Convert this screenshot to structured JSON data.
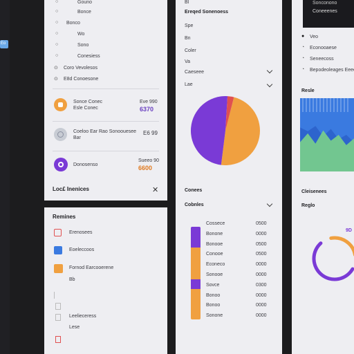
{
  "colors": {
    "orange": "#f0a040",
    "purple": "#7a3ad6",
    "gray": "#9aa0aa",
    "blue": "#3a7ae0",
    "red": "#e05050",
    "green": "#7ad08a",
    "accent_text_purple": "#6a40c0",
    "accent_text_orange": "#e07a20"
  },
  "sidebar": {
    "tag_label": "Eo"
  },
  "left_panel": {
    "nav_rows": [
      "Gouno",
      "Bonce",
      "Bonco",
      "Wo",
      "Sono",
      "Conesiess"
    ],
    "nav_row_with_icon": "Coro Vevolesos",
    "nav_row_sub": "E8d Conoesone",
    "cards": [
      {
        "title": "Sonce Conec",
        "subtitle": "Esle Conec",
        "value_top": "Eve 990",
        "value_main": "6370",
        "value_color": "purple",
        "icon_color": "orange"
      },
      {
        "title": "Coeloo Ear Rao Sonoouesee",
        "subtitle": "Bar",
        "value_top": "",
        "value_main": "E6 99",
        "value_color": "dark",
        "icon_color": "gray"
      },
      {
        "title": "Donosenso",
        "subtitle": "",
        "value_top": "Sueeo 90",
        "value_main": "6600",
        "value_color": "orange",
        "icon_color": "purple"
      }
    ],
    "footer_title": "Loc£ Inenices"
  },
  "reminders_panel": {
    "title": "Remines",
    "items": [
      {
        "label": "Erenosees",
        "icon": "edit-icon",
        "color": "red"
      },
      {
        "label": "Eoeleccoos",
        "icon": "info-icon",
        "color": "blue"
      },
      {
        "label": "Fornod Earcooerene",
        "icon": "square-icon",
        "color": "orange"
      }
    ],
    "sub_label": "Bb",
    "bottom_rows": [
      "Leelieceress",
      "Lese"
    ]
  },
  "middle_panel": {
    "top_label": "Bl",
    "title": "Ereqed Sonenoess",
    "rows": [
      "Spe",
      "Bn",
      "Coler",
      "Va"
    ],
    "dropdowns": [
      "Caeseee",
      "Lae"
    ],
    "section_label": "Conees",
    "section_dropdown": "Cobnles",
    "list_values": [
      "Cossece",
      "Bonone",
      "Bonooe",
      "Conooe",
      "Econeco",
      "Sonooe",
      "Sovce",
      "Bonoo",
      "Bonoo",
      "Sonone"
    ],
    "list_amounts": [
      "0500",
      "0000",
      "0500",
      "0500",
      "0000",
      "0000",
      "0300",
      "0000",
      "0000",
      "0000"
    ]
  },
  "pie_chart": {
    "segments": [
      {
        "value": 48,
        "color": "orange"
      },
      {
        "value": 49,
        "color": "purple"
      },
      {
        "value": 3,
        "color": "red"
      }
    ]
  },
  "right_panel": {
    "top_dark_lines": [
      "Sonconono",
      "Coneeenes"
    ],
    "radio_items": [
      "Veo",
      "Econooaese",
      "Seneecoss",
      "Bepodeoleages Eeeeo"
    ],
    "section_title": "Resle",
    "footer_title": "Cleisenees",
    "footer_sub": "Reglo",
    "ring_label": "9D"
  },
  "bar_chart": {
    "type": "area",
    "series": [
      {
        "values": [
          60,
          55,
          62,
          48,
          58,
          44,
          50,
          40
        ],
        "color": "blue"
      },
      {
        "values": [
          40,
          52,
          38,
          56,
          42,
          50,
          36,
          45
        ],
        "color": "green"
      }
    ]
  },
  "ring_chart": {
    "value_purple": 55,
    "value_orange": 25
  }
}
